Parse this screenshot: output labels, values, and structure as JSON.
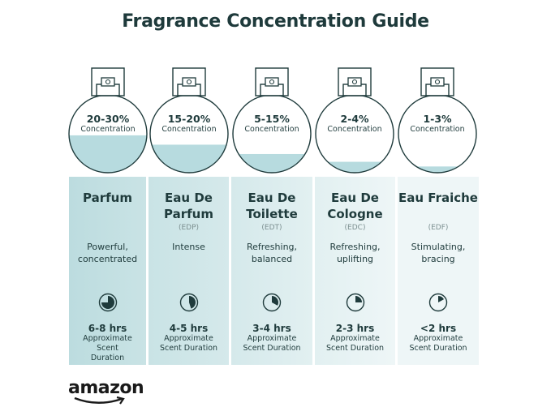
{
  "title": "Fragrance Concentration Guide",
  "logo": "amazon",
  "colors": {
    "text": "#1f3b3c",
    "liquid": "#b7dbdf",
    "card_start": "#bcdcdf",
    "card_end": "#eef6f7"
  },
  "fragrances": [
    {
      "concentration": "20-30%",
      "concentration_label": "Concentration",
      "fill_level": 0.48,
      "name": "Parfum",
      "abbr": "",
      "description": "Powerful, concentrated",
      "hours": "6-8 hrs",
      "duration_label": "Approximate Scent Duration",
      "clock_fraction": 0.75
    },
    {
      "concentration": "15-20%",
      "concentration_label": "Concentration",
      "fill_level": 0.36,
      "name": "Eau De Parfum",
      "abbr": "(EDP)",
      "description": "Intense",
      "hours": "4-5 hrs",
      "duration_label": "Approximate Scent Duration",
      "clock_fraction": 0.45
    },
    {
      "concentration": "5-15%",
      "concentration_label": "Concentration",
      "fill_level": 0.24,
      "name": "Eau De Toilette",
      "abbr": "(EDT)",
      "description": "Refreshing, balanced",
      "hours": "3-4 hrs",
      "duration_label": "Approximate Scent Duration",
      "clock_fraction": 0.33
    },
    {
      "concentration": "2-4%",
      "concentration_label": "Concentration",
      "fill_level": 0.14,
      "name": "Eau De Cologne",
      "abbr": "(EDC)",
      "description": "Refreshing, uplifting",
      "hours": "2-3 hrs",
      "duration_label": "Approximate Scent Duration",
      "clock_fraction": 0.25
    },
    {
      "concentration": "1-3%",
      "concentration_label": "Concentration",
      "fill_level": 0.08,
      "name": "Eau Fraiche",
      "abbr": "(EDF)",
      "description": "Stimulating, bracing",
      "hours": "<2 hrs",
      "duration_label": "Approximate Scent Duration",
      "clock_fraction": 0.17
    }
  ]
}
